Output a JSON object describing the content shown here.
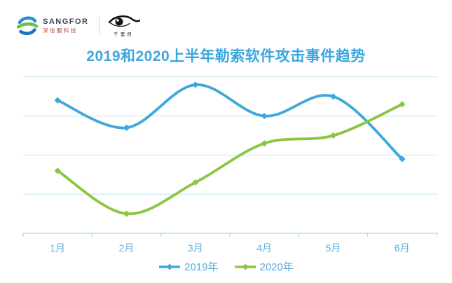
{
  "header": {
    "sangfor_logo": {
      "name": "SANGFOR",
      "subtitle": "深信服科技"
    },
    "partner_logo": {
      "name": "千里目"
    }
  },
  "chart_data": {
    "type": "line",
    "title": "2019和2020上半年勒索软件攻击事件趋势",
    "categories": [
      "1月",
      "2月",
      "3月",
      "4月",
      "5月",
      "6月"
    ],
    "series": [
      {
        "name": "2019年",
        "color": "#3FA7DC",
        "values": [
          34,
          27,
          38,
          30,
          35,
          19
        ]
      },
      {
        "name": "2020年",
        "color": "#8CC540",
        "values": [
          16,
          5,
          13,
          23,
          25,
          33
        ]
      }
    ],
    "xlabel": "",
    "ylabel": "",
    "ylim": [
      0,
      42
    ],
    "grid": true,
    "gridline_values": [
      10,
      20,
      30,
      40
    ],
    "y_tick_labels_shown": false,
    "legend_position": "bottom",
    "marker": "diamond",
    "smooth": true
  },
  "colors": {
    "title": "#3BA6DF",
    "axis_label": "#5FB2E0",
    "legend_label": "#53ACDE",
    "gridline": "#C9E6F4",
    "axis_line": "#A9D9F0",
    "background": "#FFFFFF"
  }
}
